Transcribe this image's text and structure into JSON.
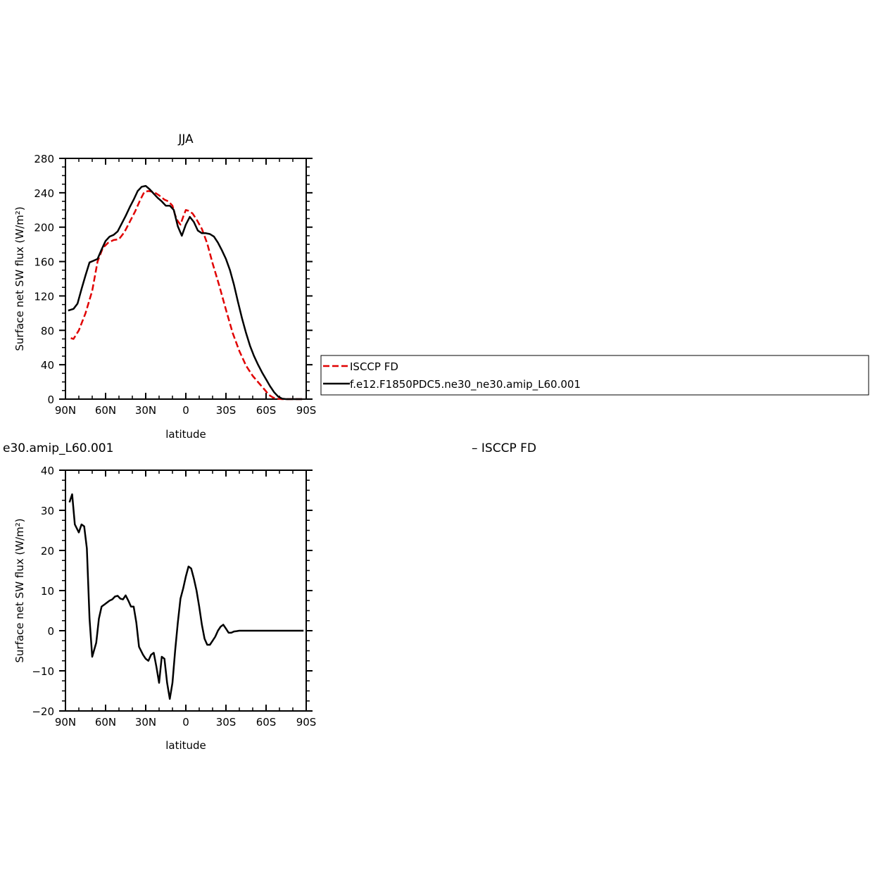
{
  "colors": {
    "model": "#000000",
    "obs": "#e00000",
    "background": "#ffffff"
  },
  "top_panel": {
    "title": "JJA",
    "ylabel": "Surface net SW flux (W/m²)",
    "xlabel": "latitude"
  },
  "bottom_panel": {
    "left_title": "e30.amip_L60.001",
    "right_title": "–  ISCCP FD",
    "ylabel": "Surface net SW flux (W/m²)",
    "xlabel": "latitude"
  },
  "legend": {
    "items": [
      {
        "label": "ISCCP FD",
        "style": "dashed",
        "color": "#e00000"
      },
      {
        "label": "f.e12.F1850PDC5.ne30_ne30.amip_L60.001",
        "style": "solid",
        "color": "#000000"
      }
    ]
  },
  "chart_data": [
    {
      "type": "line",
      "title": "JJA",
      "xlabel": "latitude",
      "ylabel": "Surface net SW flux (W/m²)",
      "xlim": [
        90,
        -90
      ],
      "ylim": [
        0,
        280
      ],
      "xticks": [
        90,
        60,
        30,
        0,
        -30,
        -60,
        -90
      ],
      "xtick_labels": [
        "90N",
        "60N",
        "30N",
        "0",
        "30S",
        "60S",
        "90S"
      ],
      "yticks": [
        0,
        40,
        80,
        120,
        160,
        200,
        240,
        280
      ],
      "ytick_labels": [
        "0",
        "40",
        "80",
        "120",
        "160",
        "200",
        "240",
        "280"
      ],
      "legend_position": "right",
      "series": [
        {
          "name": "ISCCP FD",
          "style": "dashed",
          "color": "#e00000",
          "x": [
            86,
            84,
            80,
            75,
            70,
            66,
            62,
            58,
            54,
            50,
            46,
            42,
            38,
            34,
            31,
            28,
            24,
            20,
            16,
            13,
            10,
            8,
            6,
            4,
            2,
            0,
            -2,
            -5,
            -8,
            -12,
            -16,
            -20,
            -25,
            -30,
            -35,
            -40,
            -45,
            -50,
            -55,
            -60,
            -62,
            -65,
            -68,
            -72,
            -76,
            -80,
            -85,
            -88
          ],
          "values": [
            71,
            70,
            80,
            100,
            126,
            160,
            176,
            182,
            185,
            186,
            194,
            206,
            218,
            232,
            241,
            242,
            241,
            237,
            232,
            230,
            225,
            214,
            207,
            203,
            212,
            220,
            219,
            216,
            209,
            198,
            181,
            158,
            132,
            104,
            77,
            56,
            39,
            27,
            18,
            9,
            5,
            2,
            0.5,
            0,
            0,
            0,
            0,
            0
          ]
        },
        {
          "name": "f.e12.F1850PDC5.ne30_ne30.amip_L60.001",
          "style": "solid",
          "color": "#000000",
          "x": [
            88,
            84,
            81,
            78,
            75,
            72,
            69,
            66,
            63,
            60,
            57,
            54,
            51,
            48,
            45,
            42,
            39,
            36,
            33,
            30,
            27,
            24,
            21,
            18,
            15,
            12,
            9,
            6,
            3,
            0,
            -3,
            -6,
            -9,
            -12,
            -15,
            -18,
            -21,
            -24,
            -27,
            -30,
            -33,
            -36,
            -39,
            -42,
            -45,
            -48,
            -51,
            -54,
            -57,
            -60,
            -63,
            -66,
            -69,
            -72,
            -75,
            -78,
            -81,
            -84,
            -87
          ],
          "values": [
            103,
            105,
            111,
            128,
            144,
            159,
            161,
            163,
            174,
            184,
            189,
            191,
            195,
            204,
            213,
            223,
            232,
            242,
            247,
            248,
            244,
            239,
            234,
            230,
            225,
            225,
            220,
            201,
            190,
            203,
            212,
            206,
            196,
            193,
            193,
            192,
            189,
            182,
            173,
            163,
            150,
            133,
            113,
            94,
            77,
            62,
            50,
            40,
            31,
            23,
            15,
            8,
            3,
            0.5,
            0,
            0,
            0,
            0,
            0
          ]
        }
      ]
    },
    {
      "type": "line",
      "title": "e30.amip_L60.001",
      "xlabel": "latitude",
      "ylabel": "Surface net SW flux (W/m²)",
      "xlim": [
        90,
        -90
      ],
      "ylim": [
        -20,
        40
      ],
      "xticks": [
        90,
        60,
        30,
        0,
        -30,
        -60,
        -90
      ],
      "xtick_labels": [
        "90N",
        "60N",
        "30N",
        "0",
        "30S",
        "60S",
        "90S"
      ],
      "yticks": [
        -20,
        -10,
        0,
        10,
        20,
        30,
        40
      ],
      "ytick_labels": [
        "−20",
        "−10",
        "0",
        "10",
        "20",
        "30",
        "40"
      ],
      "series": [
        {
          "name": "f.e12.F1850PDC5.ne30_ne30.amip_L60.001",
          "style": "solid",
          "color": "#000000",
          "x": [
            87,
            85,
            83,
            80,
            78,
            76,
            74,
            72,
            70,
            67,
            65,
            63,
            61,
            59,
            57,
            55,
            53,
            51,
            49,
            47,
            45,
            43,
            41,
            39,
            37,
            35,
            32,
            30,
            28,
            26,
            24,
            22,
            20,
            18,
            16,
            14,
            12,
            10,
            8,
            6,
            4,
            2,
            0,
            -2,
            -4,
            -6,
            -8,
            -10,
            -12,
            -14,
            -16,
            -18,
            -20,
            -22,
            -24,
            -26,
            -28,
            -30,
            -32,
            -34,
            -36,
            -38,
            -40,
            -42,
            -45,
            -50,
            -55,
            -60,
            -63,
            -66,
            -70,
            -75,
            -80,
            -85,
            -88
          ],
          "values": [
            32,
            34,
            26.5,
            24.5,
            26.5,
            26,
            20.5,
            3,
            -6.5,
            -3,
            3,
            6,
            6.5,
            7,
            7.5,
            7.8,
            8.5,
            8.7,
            8,
            7.8,
            8.8,
            7.5,
            6,
            6,
            2,
            -4,
            -6,
            -7,
            -7.5,
            -6,
            -5.5,
            -9,
            -13,
            -6.5,
            -7,
            -13,
            -17,
            -13,
            -5,
            2,
            8,
            10.5,
            13.5,
            16,
            15.5,
            13,
            10,
            6,
            1.5,
            -2,
            -3.5,
            -3.5,
            -2.5,
            -1.5,
            0,
            1,
            1.5,
            0.5,
            -0.5,
            -0.5,
            -0.2,
            -0.1,
            0,
            0,
            0,
            0,
            0,
            0,
            0,
            0,
            0,
            0,
            0,
            0,
            0
          ]
        }
      ]
    }
  ]
}
